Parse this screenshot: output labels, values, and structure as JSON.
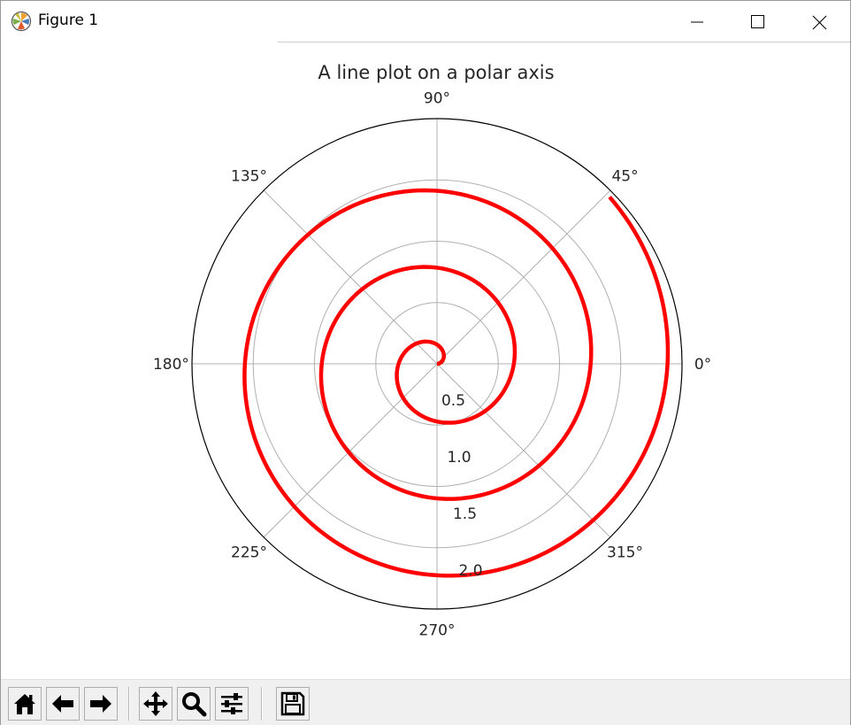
{
  "window": {
    "title": "Figure 1",
    "app_icon": "matplotlib-icon",
    "controls": [
      "minimize-icon",
      "maximize-icon",
      "close-icon"
    ]
  },
  "toolbar": {
    "buttons": [
      {
        "name": "home-button",
        "icon": "home-icon"
      },
      {
        "name": "back-button",
        "icon": "back-arrow-icon"
      },
      {
        "name": "forward-button",
        "icon": "forward-arrow-icon"
      },
      {
        "name": "pan-button",
        "icon": "move-icon"
      },
      {
        "name": "zoom-button",
        "icon": "magnifier-icon"
      },
      {
        "name": "configure-subplots-button",
        "icon": "sliders-icon"
      },
      {
        "name": "save-button",
        "icon": "floppy-disk-icon"
      }
    ],
    "coordinates": ""
  },
  "chart_data": {
    "type": "line",
    "projection": "polar",
    "title": "A line plot on a polar axis",
    "series": [
      {
        "color": "#ff0000",
        "function": "r = 0.1 * theta (radians)",
        "theta_range_degrees": [
          0,
          1125
        ],
        "r_range": [
          0,
          1.96
        ]
      }
    ],
    "rmax": 2,
    "r_ticks": [
      "0.5",
      "1.0",
      "1.5",
      "2.0"
    ],
    "r_tick_values": [
      0.5,
      1.0,
      1.5,
      2.0
    ],
    "theta_ticks": [
      "0°",
      "45°",
      "90°",
      "135°",
      "180°",
      "225°",
      "270°",
      "315°"
    ],
    "theta_tick_values": [
      0,
      45,
      90,
      135,
      180,
      225,
      270,
      315
    ],
    "grid": true,
    "grid_color": "#b0b0b0",
    "axis_color": "#000000"
  }
}
